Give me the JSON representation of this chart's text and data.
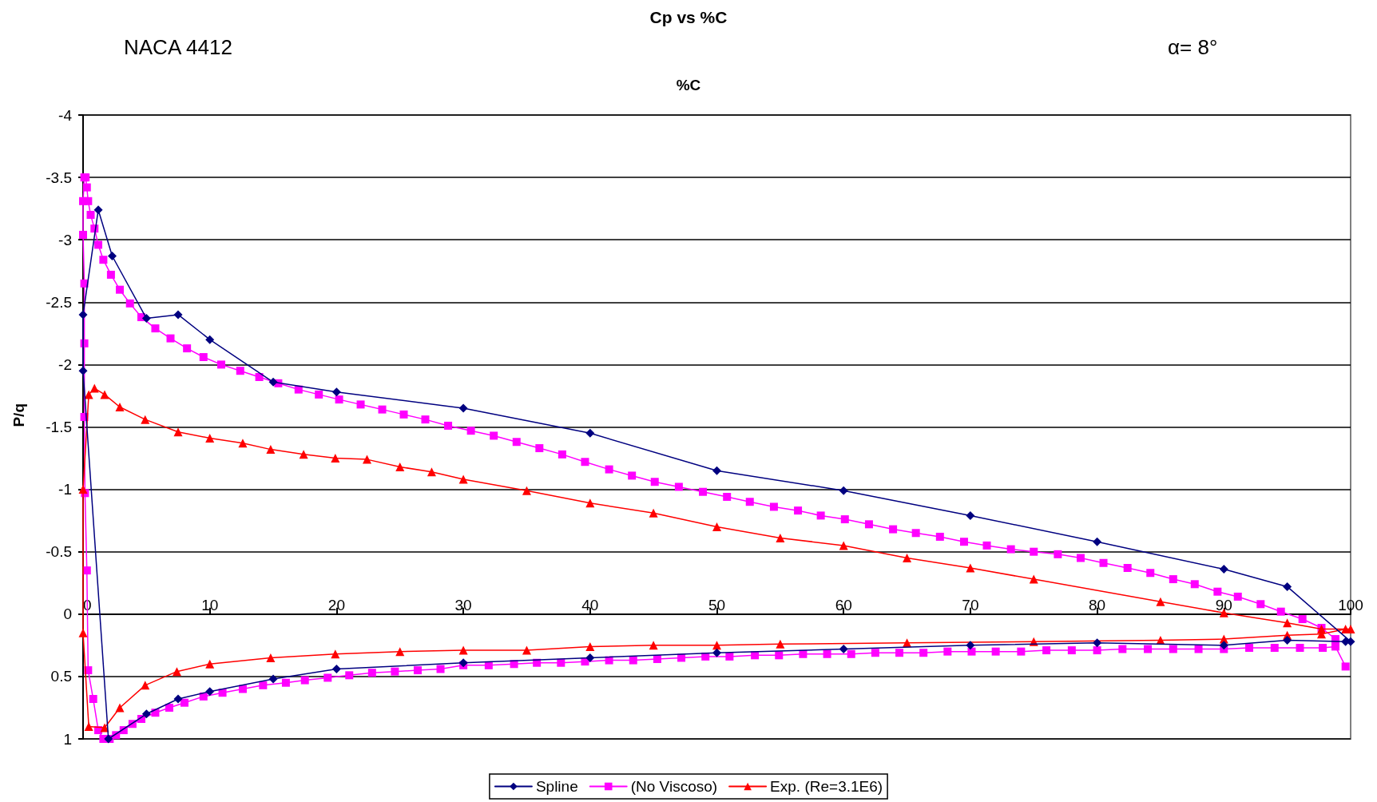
{
  "chart_data": {
    "type": "line",
    "title": "Cp vs %C",
    "xlabel": "%C",
    "ylabel": "P/q",
    "annotations": [
      "NACA 4412",
      "α= 8°"
    ],
    "xlim": [
      0,
      100
    ],
    "xticks": [
      0,
      10,
      20,
      30,
      40,
      50,
      60,
      70,
      80,
      90,
      100
    ],
    "ylim": [
      1,
      -4
    ],
    "yticks": [
      -4,
      -3.5,
      -3,
      -2.5,
      -2,
      -1.5,
      -1,
      -0.5,
      0,
      0.5,
      1
    ],
    "grid": "y",
    "legend": "bottom",
    "line_style": "solid",
    "series": [
      {
        "name": "Spline",
        "color": "#000080",
        "marker": "diamond",
        "x": [
          100,
          95,
          90,
          80,
          70,
          60,
          50,
          40,
          30,
          20,
          15,
          10,
          7.5,
          5,
          2.3,
          1.2,
          0,
          0,
          2,
          5,
          7.5,
          10,
          15,
          20,
          30,
          40,
          50,
          60,
          70,
          80,
          90,
          95,
          99.6
        ],
        "values": [
          0.22,
          -0.22,
          -0.36,
          -0.58,
          -0.79,
          -0.99,
          -1.15,
          -1.45,
          -1.65,
          -1.78,
          -1.86,
          -2.2,
          -2.4,
          -2.37,
          -2.87,
          -3.24,
          -2.4,
          -1.95,
          1.0,
          0.8,
          0.68,
          0.62,
          0.52,
          0.44,
          0.39,
          0.35,
          0.31,
          0.28,
          0.25,
          0.23,
          0.25,
          0.21,
          0.22
        ]
      },
      {
        "name": "(No Viscoso)",
        "color": "#ff00ff",
        "marker": "square",
        "x": [
          98.8,
          97.7,
          96.2,
          94.5,
          92.9,
          91.1,
          89.5,
          87.7,
          86,
          84.2,
          82.4,
          80.5,
          78.7,
          76.9,
          75,
          73.2,
          71.3,
          69.5,
          67.6,
          65.7,
          63.9,
          62,
          60.1,
          58.2,
          56.4,
          54.5,
          52.6,
          50.8,
          48.9,
          47,
          45.1,
          43.3,
          41.5,
          39.6,
          37.8,
          36,
          34.2,
          32.4,
          30.6,
          28.8,
          27,
          25.3,
          23.6,
          21.9,
          20.2,
          18.6,
          17,
          15.4,
          13.9,
          12.4,
          10.9,
          9.5,
          8.2,
          6.9,
          5.7,
          4.6,
          3.7,
          2.9,
          2.2,
          1.6,
          1.2,
          0.9,
          0.6,
          0.4,
          0.3,
          0.2,
          0.1,
          0,
          0,
          0.1,
          0.1,
          0.1,
          0.15,
          0.3,
          0.4,
          0.8,
          1.2,
          1.6,
          2.1,
          2.6,
          3.2,
          3.9,
          4.6,
          5.7,
          6.8,
          8,
          9.5,
          11,
          12.6,
          14.2,
          16,
          17.5,
          19.3,
          21,
          22.8,
          24.6,
          26.4,
          28.2,
          30,
          32,
          34,
          35.8,
          37.7,
          39.6,
          41.5,
          43.4,
          45.3,
          47.2,
          49.1,
          51,
          53,
          54.9,
          56.8,
          58.7,
          60.6,
          62.5,
          64.4,
          66.3,
          68.2,
          70.1,
          72,
          74,
          76,
          78,
          80,
          82,
          84,
          86,
          88,
          90,
          92,
          94,
          96,
          97.8,
          98.8,
          99.6
        ],
        "values": [
          0.2,
          0.11,
          0.04,
          -0.02,
          -0.08,
          -0.14,
          -0.18,
          -0.24,
          -0.28,
          -0.33,
          -0.37,
          -0.41,
          -0.45,
          -0.48,
          -0.5,
          -0.52,
          -0.55,
          -0.58,
          -0.62,
          -0.65,
          -0.68,
          -0.72,
          -0.76,
          -0.79,
          -0.83,
          -0.86,
          -0.9,
          -0.94,
          -0.98,
          -1.02,
          -1.06,
          -1.11,
          -1.16,
          -1.22,
          -1.28,
          -1.33,
          -1.38,
          -1.43,
          -1.47,
          -1.51,
          -1.56,
          -1.6,
          -1.64,
          -1.68,
          -1.72,
          -1.76,
          -1.8,
          -1.85,
          -1.9,
          -1.95,
          -2.0,
          -2.06,
          -2.13,
          -2.21,
          -2.29,
          -2.38,
          -2.49,
          -2.6,
          -2.72,
          -2.84,
          -2.96,
          -3.09,
          -3.2,
          -3.31,
          -3.42,
          -3.5,
          -3.5,
          -3.31,
          -3.04,
          -2.65,
          -2.17,
          -1.58,
          -0.97,
          -0.35,
          0.45,
          0.68,
          0.93,
          1.0,
          1.0,
          0.97,
          0.93,
          0.88,
          0.84,
          0.79,
          0.75,
          0.71,
          0.66,
          0.63,
          0.6,
          0.57,
          0.55,
          0.53,
          0.51,
          0.49,
          0.47,
          0.46,
          0.45,
          0.44,
          0.41,
          0.41,
          0.4,
          0.39,
          0.39,
          0.38,
          0.37,
          0.37,
          0.36,
          0.35,
          0.34,
          0.34,
          0.33,
          0.33,
          0.32,
          0.32,
          0.32,
          0.31,
          0.31,
          0.31,
          0.3,
          0.3,
          0.3,
          0.3,
          0.29,
          0.29,
          0.29,
          0.28,
          0.28,
          0.28,
          0.28,
          0.28,
          0.27,
          0.27,
          0.27,
          0.27,
          0.26,
          0.42
        ]
      },
      {
        "name": "Exp. (Re=3.1E6)",
        "color": "#ff0000",
        "marker": "triangle",
        "x": [
          100,
          97.7,
          95,
          90,
          85,
          75,
          70,
          65,
          60,
          55,
          50,
          45,
          40,
          35,
          30,
          27.5,
          25,
          22.4,
          19.9,
          17.4,
          14.8,
          12.6,
          10,
          7.5,
          4.9,
          2.9,
          1.7,
          0.9,
          0.45,
          0,
          0,
          0.45,
          1.7,
          2.9,
          4.9,
          7.4,
          10,
          14.8,
          19.9,
          25,
          30,
          35,
          40,
          45,
          50,
          55,
          65,
          75,
          85,
          90,
          95,
          97.7,
          99.6
        ],
        "values": [
          0.12,
          0.12,
          0.07,
          -0.01,
          -0.1,
          -0.28,
          -0.37,
          -0.45,
          -0.55,
          -0.61,
          -0.7,
          -0.81,
          -0.89,
          -0.99,
          -1.08,
          -1.14,
          -1.18,
          -1.24,
          -1.25,
          -1.28,
          -1.32,
          -1.37,
          -1.41,
          -1.46,
          -1.56,
          -1.66,
          -1.76,
          -1.81,
          -1.76,
          -1.0,
          0.15,
          0.9,
          0.91,
          0.75,
          0.57,
          0.46,
          0.4,
          0.35,
          0.32,
          0.3,
          0.29,
          0.29,
          0.26,
          0.25,
          0.25,
          0.24,
          0.23,
          0.22,
          0.21,
          0.2,
          0.17,
          0.16,
          0.12
        ]
      }
    ]
  }
}
